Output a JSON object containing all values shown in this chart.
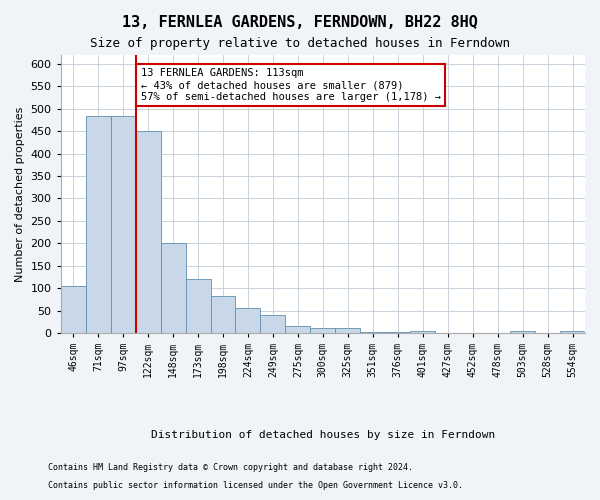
{
  "title": "13, FERNLEA GARDENS, FERNDOWN, BH22 8HQ",
  "subtitle": "Size of property relative to detached houses in Ferndown",
  "xlabel": "Distribution of detached houses by size in Ferndown",
  "ylabel": "Number of detached properties",
  "bar_color": "#c8d8e8",
  "bar_edge_color": "#6090b0",
  "categories": [
    "46sqm",
    "71sqm",
    "97sqm",
    "122sqm",
    "148sqm",
    "173sqm",
    "198sqm",
    "224sqm",
    "249sqm",
    "275sqm",
    "300sqm",
    "325sqm",
    "351sqm",
    "376sqm",
    "401sqm",
    "427sqm",
    "452sqm",
    "478sqm",
    "503sqm",
    "528sqm",
    "554sqm"
  ],
  "values": [
    105,
    485,
    485,
    450,
    200,
    120,
    82,
    55,
    40,
    15,
    10,
    10,
    2,
    2,
    5,
    0,
    0,
    0,
    5,
    0,
    5
  ],
  "vline_x": 2.5,
  "vline_color": "#cc0000",
  "annotation_text": "13 FERNLEA GARDENS: 113sqm\n← 43% of detached houses are smaller (879)\n57% of semi-detached houses are larger (1,178) →",
  "annotation_box_color": "#ffffff",
  "annotation_box_edge": "#cc0000",
  "ylim": [
    0,
    620
  ],
  "yticks": [
    0,
    50,
    100,
    150,
    200,
    250,
    300,
    350,
    400,
    450,
    500,
    550,
    600
  ],
  "footer_line1": "Contains HM Land Registry data © Crown copyright and database right 2024.",
  "footer_line2": "Contains public sector information licensed under the Open Government Licence v3.0.",
  "bg_color": "#f0f4f8",
  "plot_bg_color": "#ffffff",
  "grid_color": "#c0ccd8"
}
